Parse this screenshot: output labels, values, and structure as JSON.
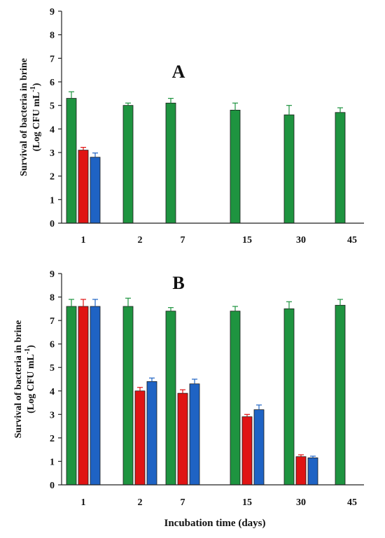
{
  "figure": {
    "xlabel": "Incubation time (days)"
  },
  "chart_data": [
    {
      "type": "bar",
      "panel_label": "A",
      "ylabel_line1": "Survival of bacteria in brine",
      "ylabel_line2": "(Log CFU mL",
      "ylabel_sup": "-1",
      "ylabel_close": ")",
      "categories": [
        "1",
        "2",
        "7",
        "15",
        "30",
        "45"
      ],
      "ylim": [
        0,
        9
      ],
      "yticks": [
        0,
        1,
        2,
        3,
        4,
        5,
        6,
        7,
        8,
        9
      ],
      "series": [
        {
          "color": "#1e9440",
          "values": [
            5.3,
            5.0,
            5.1,
            4.8,
            4.6,
            4.7
          ],
          "errors": [
            0.28,
            0.1,
            0.2,
            0.3,
            0.4,
            0.2
          ]
        },
        {
          "color": "#e01414",
          "values": [
            3.1,
            null,
            null,
            null,
            null,
            null
          ],
          "errors": [
            0.12,
            null,
            null,
            null,
            null,
            null
          ]
        },
        {
          "color": "#1f63c4",
          "values": [
            2.8,
            null,
            null,
            null,
            null,
            null
          ],
          "errors": [
            0.18,
            null,
            null,
            null,
            null,
            null
          ]
        }
      ],
      "grid": false
    },
    {
      "type": "bar",
      "panel_label": "B",
      "ylabel_line1": "Survival of bacteria in brine",
      "ylabel_line2": "(Log CFU mL",
      "ylabel_sup": "-1",
      "ylabel_close": ")",
      "categories": [
        "1",
        "2",
        "7",
        "15",
        "30",
        "45"
      ],
      "ylim": [
        0,
        9
      ],
      "yticks": [
        0,
        1,
        2,
        3,
        4,
        5,
        6,
        7,
        8,
        9
      ],
      "series": [
        {
          "color": "#1e9440",
          "values": [
            7.6,
            7.6,
            7.4,
            7.4,
            7.5,
            7.65
          ],
          "errors": [
            0.3,
            0.35,
            0.15,
            0.2,
            0.3,
            0.25
          ]
        },
        {
          "color": "#e01414",
          "values": [
            7.6,
            4.0,
            3.9,
            2.9,
            1.2,
            null
          ],
          "errors": [
            0.3,
            0.15,
            0.15,
            0.1,
            0.08,
            null
          ]
        },
        {
          "color": "#1f63c4",
          "values": [
            7.6,
            4.4,
            4.3,
            3.2,
            1.15,
            null
          ],
          "errors": [
            0.3,
            0.15,
            0.2,
            0.2,
            0.07,
            null
          ]
        }
      ],
      "grid": false
    }
  ]
}
